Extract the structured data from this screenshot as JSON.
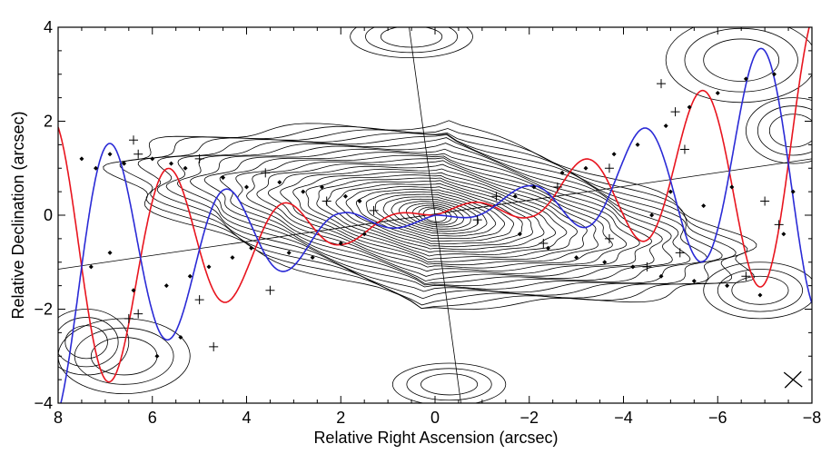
{
  "chart_data": {
    "type": "scatter",
    "title": "",
    "xlabel": "Relative Right Ascension (arcsec)",
    "ylabel": "Relative Declination (arcsec)",
    "xlim": [
      8,
      -8
    ],
    "ylim": [
      -4,
      4
    ],
    "x_reversed": true,
    "grid": false,
    "legend": "none",
    "x_ticks": [
      8,
      6,
      4,
      2,
      0,
      -2,
      -4,
      -6,
      -8
    ],
    "y_ticks": [
      4,
      2,
      0,
      -2,
      -4
    ],
    "x_tick_labels": [
      "8",
      "6",
      "4",
      "2",
      "0",
      "−2",
      "−4",
      "−6",
      "−8"
    ],
    "y_tick_labels": [
      "4",
      "2",
      "0",
      "−2",
      "−4"
    ],
    "colors": {
      "contours": "#000000",
      "jet_model_red": "#e8141e",
      "jet_model_blue": "#2a2ad6",
      "axis": "#000000"
    },
    "reference_lines": [
      {
        "name": "jet axis",
        "points": [
          [
            8,
            -1.15
          ],
          [
            -8,
            1.2
          ]
        ]
      },
      {
        "name": "perpendicular axis",
        "points": [
          [
            0.55,
            4
          ],
          [
            -0.55,
            -4
          ]
        ]
      }
    ],
    "jet_model_red": {
      "amplitude_profile": [
        [
          0,
          0.05
        ],
        [
          2,
          0.35
        ],
        [
          4,
          1.0
        ],
        [
          6,
          2.0
        ],
        [
          8,
          3.2
        ]
      ],
      "wavelength": 2.5,
      "sign": 1
    },
    "jet_model_blue": {
      "amplitude_profile": [
        [
          0,
          0.05
        ],
        [
          2,
          0.35
        ],
        [
          4,
          1.0
        ],
        [
          6,
          2.0
        ],
        [
          8,
          3.2
        ]
      ],
      "wavelength": 2.5,
      "sign": -1
    },
    "plus_markers": [
      [
        6.4,
        1.6
      ],
      [
        6.3,
        1.3
      ],
      [
        5.0,
        1.2
      ],
      [
        3.6,
        0.9
      ],
      [
        2.3,
        0.3
      ],
      [
        1.3,
        0.1
      ],
      [
        -1.3,
        0.4
      ],
      [
        -2.6,
        0.6
      ],
      [
        -3.7,
        1.0
      ],
      [
        -4.8,
        2.8
      ],
      [
        -5.1,
        2.2
      ],
      [
        -5.3,
        1.4
      ],
      [
        -7.0,
        0.3
      ],
      [
        6.3,
        -2.1
      ],
      [
        5.0,
        -1.8
      ],
      [
        3.5,
        -1.6
      ],
      [
        -0.9,
        -0.1
      ],
      [
        -2.3,
        -0.6
      ],
      [
        -3.7,
        -0.5
      ],
      [
        -4.5,
        -1.1
      ],
      [
        -5.2,
        -0.8
      ],
      [
        -6.6,
        -1.3
      ],
      [
        4.7,
        -2.8
      ],
      [
        6.5,
        -2.2
      ],
      [
        -7.3,
        -0.2
      ]
    ],
    "diamond_markers": [
      [
        7.5,
        1.2
      ],
      [
        7.2,
        1.0
      ],
      [
        6.9,
        1.3
      ],
      [
        6.6,
        1.1
      ],
      [
        6.0,
        1.2
      ],
      [
        5.6,
        1.1
      ],
      [
        5.3,
        1.0
      ],
      [
        4.5,
        0.8
      ],
      [
        4.0,
        0.6
      ],
      [
        3.3,
        0.7
      ],
      [
        2.8,
        0.5
      ],
      [
        2.4,
        0.6
      ],
      [
        1.9,
        0.4
      ],
      [
        1.6,
        0.3
      ],
      [
        7.3,
        -1.1
      ],
      [
        6.9,
        -0.8
      ],
      [
        6.4,
        -1.6
      ],
      [
        5.7,
        -1.5
      ],
      [
        5.2,
        -1.3
      ],
      [
        4.8,
        -1.1
      ],
      [
        4.3,
        -0.9
      ],
      [
        3.9,
        -0.7
      ],
      [
        3.1,
        -0.8
      ],
      [
        2.6,
        -0.9
      ],
      [
        2.0,
        -0.6
      ],
      [
        1.5,
        -0.4
      ],
      [
        5.9,
        -3.0
      ],
      [
        5.4,
        -2.6
      ],
      [
        -1.7,
        0.4
      ],
      [
        -2.1,
        0.6
      ],
      [
        -2.7,
        0.9
      ],
      [
        -3.2,
        1.0
      ],
      [
        -3.8,
        1.3
      ],
      [
        -4.3,
        1.5
      ],
      [
        -4.9,
        1.9
      ],
      [
        -5.4,
        2.3
      ],
      [
        -6.0,
        2.6
      ],
      [
        -6.6,
        2.9
      ],
      [
        -7.2,
        3.0
      ],
      [
        -1.8,
        -0.4
      ],
      [
        -2.4,
        -0.7
      ],
      [
        -3.0,
        -0.9
      ],
      [
        -3.6,
        -1.0
      ],
      [
        -4.2,
        -1.1
      ],
      [
        -4.8,
        -1.3
      ],
      [
        -5.5,
        -1.4
      ],
      [
        -6.2,
        -1.5
      ],
      [
        -6.9,
        -1.7
      ],
      [
        -7.4,
        -0.4
      ],
      [
        -7.6,
        0.5
      ],
      [
        -6.3,
        0.6
      ],
      [
        -5.7,
        0.2
      ],
      [
        -5.0,
        0.5
      ],
      [
        -4.6,
        0.0
      ]
    ]
  }
}
